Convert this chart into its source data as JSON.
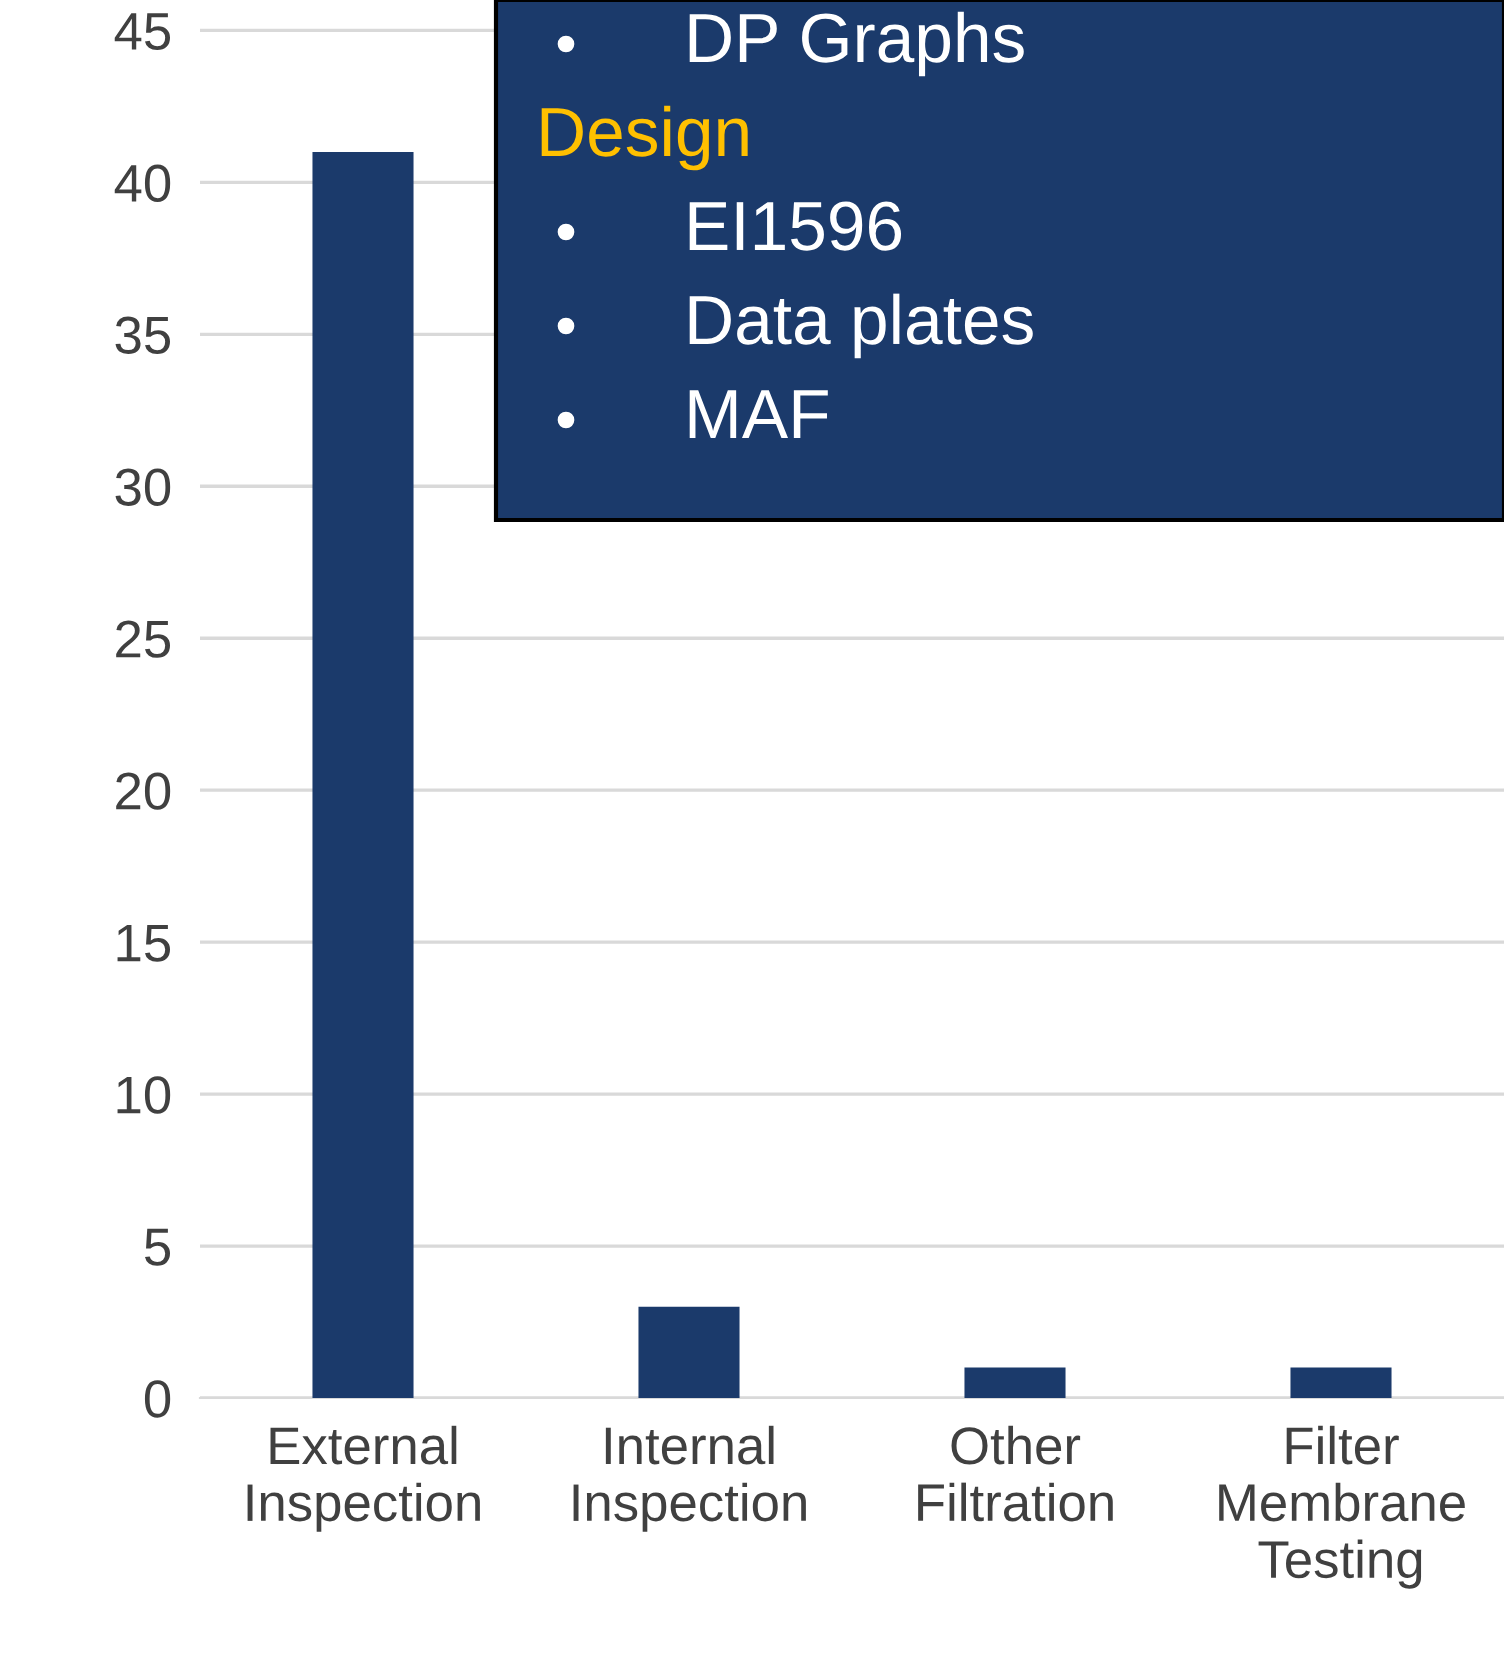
{
  "chart_data": {
    "type": "bar",
    "categories": [
      "External\nInspection",
      "Internal\nInspection",
      "Other\nFiltration",
      "Filter\nMembrane\nTesting"
    ],
    "values": [
      41,
      3,
      1,
      1
    ],
    "color": "#1b3a6b",
    "ylim": [
      0,
      46
    ],
    "yticks": [
      0,
      5,
      10,
      15,
      20,
      25,
      30,
      35,
      40,
      45
    ],
    "grid": "y",
    "annotations": [
      "DP Graphs",
      "Design",
      "EI1596",
      "Data plates",
      "MAF"
    ]
  }
}
